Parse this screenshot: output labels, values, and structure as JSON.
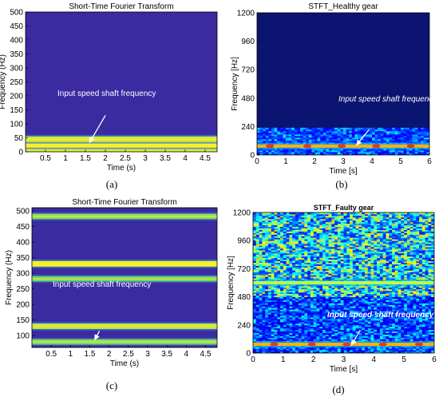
{
  "chart_data": [
    {
      "id": "a",
      "type": "heatmap",
      "title": "Short-Time Fourier Transform",
      "xlabel": "Time (s)",
      "ylabel": "Frequency (Hz)",
      "xlim": [
        0,
        4.8
      ],
      "ylim": [
        0,
        500
      ],
      "xticks": [
        "0.5",
        "1",
        "1.5",
        "2",
        "2.5",
        "3",
        "3.5",
        "4",
        "4.5"
      ],
      "yticks": [
        "0",
        "50",
        "100",
        "150",
        "200",
        "250",
        "300",
        "350",
        "400",
        "450",
        "500"
      ],
      "background": "#3b2aa0",
      "bands": [
        {
          "freq": 10,
          "strength": 0.9
        },
        {
          "freq": 25,
          "strength": 1.0
        },
        {
          "freq": 45,
          "strength": 0.85
        }
      ],
      "annotation": "Input speed shaft frequency",
      "arrow": {
        "from": [
          2.0,
          130
        ],
        "to": [
          1.6,
          32
        ]
      },
      "caption": "(a)"
    },
    {
      "id": "b",
      "type": "heatmap",
      "title": "STFT_Healthy gear",
      "xlabel": "Time [s]",
      "ylabel": "Frequency [Hz]",
      "xlim": [
        0,
        6
      ],
      "ylim": [
        0,
        1200
      ],
      "xticks": [
        "0",
        "1",
        "2",
        "3",
        "4",
        "5",
        "6"
      ],
      "yticks": [
        "0",
        "240",
        "480",
        "720",
        "960",
        "1200"
      ],
      "background": "#0b1470",
      "noise_band": [
        0,
        230
      ],
      "bands": [
        {
          "freq": 75,
          "strength": 1.0
        }
      ],
      "hotspots": [
        0.45,
        1.75,
        2.95,
        4.15,
        5.35
      ],
      "annotation": "Input speed shaft frequency",
      "arrow": {
        "from": [
          3.9,
          215
        ],
        "to": [
          3.45,
          80
        ]
      },
      "caption": "(b)"
    },
    {
      "id": "c",
      "type": "heatmap",
      "title": "Short-Time Fourier Transform",
      "xlabel": "Time (s)",
      "ylabel": "Frequency (Hz)",
      "xlim": [
        0,
        4.8
      ],
      "ylim": [
        0,
        500
      ],
      "xticks": [
        "0.5",
        "1",
        "1.5",
        "2",
        "2.5",
        "3",
        "3.5",
        "4",
        "4.5"
      ],
      "yticks": [
        "100",
        "150",
        "200",
        "250",
        "300",
        "350",
        "400",
        "450",
        "500"
      ],
      "ylim_visible": [
        62,
        510
      ],
      "background": "#3b2aa0",
      "bands": [
        {
          "freq": 80,
          "strength": 0.5
        },
        {
          "freq": 130,
          "strength": 0.8
        },
        {
          "freq": 282,
          "strength": 0.45
        },
        {
          "freq": 330,
          "strength": 1.0
        },
        {
          "freq": 482,
          "strength": 0.55
        }
      ],
      "annotation": "Input speed shaft frequency",
      "arrow": {
        "from": [
          1.75,
          115
        ],
        "to": [
          1.62,
          85
        ]
      },
      "caption": "(c)"
    },
    {
      "id": "d",
      "type": "heatmap",
      "title": "STFT_Faulty gear",
      "xlabel": "Time [s]",
      "ylabel": "Frequency [Hz]",
      "xlim": [
        0,
        6
      ],
      "ylim": [
        0,
        1200
      ],
      "xticks": [
        "0",
        "1",
        "2",
        "3",
        "4",
        "5",
        "6"
      ],
      "yticks": [
        "0",
        "240",
        "480",
        "720",
        "960",
        "1200"
      ],
      "background": "#0b1470",
      "noise_band": [
        0,
        1200
      ],
      "bands": [
        {
          "freq": 75,
          "strength": 1.0
        },
        {
          "freq": 600,
          "strength": 0.6
        }
      ],
      "hotspots": [
        0.7,
        1.95,
        3.1,
        4.3,
        5.5
      ],
      "annotation": "Input speed shaft frequency",
      "arrow": {
        "from": [
          3.55,
          195
        ],
        "to": [
          3.25,
          65
        ]
      },
      "caption": "(d)"
    }
  ]
}
